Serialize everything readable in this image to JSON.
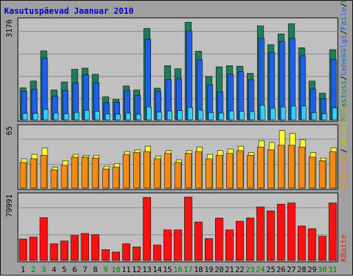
{
  "title": "Kasutuspäevad Jaanuar 2010",
  "colors": {
    "background": "#ffffff",
    "frame": "#a0a0a0",
    "panel": "#c0c0c0",
    "gridline": "#888888",
    "border": "#000000",
    "title": "#0000cc",
    "weekday_label": "#000000",
    "weekend_label": "#008000",
    "visits": "#1f7c5a",
    "pages": "#1e5fe8",
    "files": "#30d0ff",
    "hits": "#ffff30",
    "sites": "#f58a10",
    "kbytes": "#ff1010"
  },
  "chart_data": [
    {
      "type": "bar",
      "panel": "top",
      "scale_label": "3176",
      "ymax": 3176,
      "grid": true,
      "legend_placement": "right",
      "x": [
        "1",
        "2",
        "3",
        "4",
        "5",
        "6",
        "7",
        "8",
        "9",
        "10",
        "11",
        "12",
        "13",
        "14",
        "15",
        "16",
        "17",
        "18",
        "19",
        "20",
        "21",
        "22",
        "23",
        "24",
        "25",
        "26",
        "27",
        "28",
        "29",
        "30",
        "31"
      ],
      "weekend_days": [
        "2",
        "3",
        "9",
        "10",
        "16",
        "17",
        "23",
        "24",
        "30",
        "31"
      ],
      "side_labels": [
        {
          "text": "Külastusi",
          "color": "#1f7c5a"
        },
        {
          "text": "Lehekülgi",
          "color": "#1e5fe8"
        },
        {
          "text": "Faile",
          "color": "#1e5fe8"
        },
        {
          "text": "Päringuid",
          "color": "#1f7c5a"
        }
      ],
      "series": [
        {
          "name": "Külastusi",
          "color": "#1f7c5a",
          "values": [
            1040,
            1260,
            2240,
            970,
            1230,
            1640,
            1680,
            1480,
            750,
            660,
            1100,
            970,
            2970,
            1030,
            1760,
            1660,
            3170,
            2230,
            1410,
            1720,
            1760,
            1740,
            1510,
            3050,
            2440,
            2790,
            3120,
            2340,
            1260,
            870,
            2280
          ]
        },
        {
          "name": "Lehekülgi",
          "color": "#1e5fe8",
          "values": [
            930,
            1000,
            2010,
            770,
            950,
            1210,
            1460,
            1200,
            560,
            570,
            950,
            790,
            2620,
            920,
            1310,
            1340,
            2890,
            1950,
            1140,
            900,
            1480,
            1570,
            1300,
            2640,
            2190,
            2540,
            2640,
            2080,
            1000,
            690,
            1960
          ]
        },
        {
          "name": "Faile",
          "color": "#30d0ff",
          "values": [
            210,
            210,
            340,
            220,
            200,
            240,
            310,
            280,
            190,
            180,
            220,
            180,
            420,
            250,
            290,
            300,
            400,
            310,
            240,
            220,
            290,
            280,
            270,
            470,
            380,
            420,
            450,
            450,
            230,
            200,
            390
          ]
        }
      ]
    },
    {
      "type": "bar",
      "panel": "middle",
      "scale_label": "65",
      "ymax": 65,
      "grid": true,
      "legend_placement": "right",
      "x": [
        "1",
        "2",
        "3",
        "4",
        "5",
        "6",
        "7",
        "8",
        "9",
        "10",
        "11",
        "12",
        "13",
        "14",
        "15",
        "16",
        "17",
        "18",
        "19",
        "20",
        "21",
        "22",
        "23",
        "24",
        "25",
        "26",
        "27",
        "28",
        "29",
        "30",
        "31"
      ],
      "side_labels": [
        {
          "text": "Aadresse",
          "color": "#f58a10"
        },
        {
          "text": "Külastusi",
          "color": "#c8c800"
        }
      ],
      "series": [
        {
          "name": "Külastusi",
          "color": "#ffff30",
          "values": [
            32,
            37,
            44,
            23,
            30,
            37,
            36,
            36,
            24,
            27,
            40,
            42,
            46,
            35,
            41,
            31,
            41,
            45,
            37,
            41,
            43,
            46,
            39,
            52,
            50,
            63,
            60,
            53,
            39,
            33,
            44
          ]
        },
        {
          "name": "Aadresse",
          "color": "#f58a10",
          "values": [
            28,
            32,
            36,
            20,
            25,
            34,
            34,
            33,
            21,
            23,
            37,
            39,
            40,
            32,
            38,
            28,
            38,
            40,
            32,
            36,
            38,
            41,
            36,
            45,
            42,
            47,
            47,
            45,
            34,
            30,
            40
          ]
        }
      ]
    },
    {
      "type": "bar",
      "panel": "bottom",
      "scale_label": "79991",
      "ymax": 79991,
      "grid": true,
      "legend_placement": "right",
      "x": [
        "1",
        "2",
        "3",
        "4",
        "5",
        "6",
        "7",
        "8",
        "9",
        "10",
        "11",
        "12",
        "13",
        "14",
        "15",
        "16",
        "17",
        "18",
        "19",
        "20",
        "21",
        "22",
        "23",
        "24",
        "25",
        "26",
        "27",
        "28",
        "29",
        "30",
        "31"
      ],
      "side_labels": [
        {
          "text": "KBaite",
          "color": "#ff1010"
        }
      ],
      "series": [
        {
          "name": "KBaite",
          "color": "#ff1010",
          "values": [
            27000,
            29500,
            54000,
            21000,
            24500,
            31500,
            34000,
            32500,
            13500,
            10500,
            21000,
            17000,
            79500,
            19500,
            38500,
            38500,
            80000,
            48500,
            27500,
            53500,
            38500,
            49500,
            53500,
            67500,
            62500,
            71000,
            72500,
            43500,
            40000,
            30500,
            72500
          ]
        }
      ]
    }
  ]
}
